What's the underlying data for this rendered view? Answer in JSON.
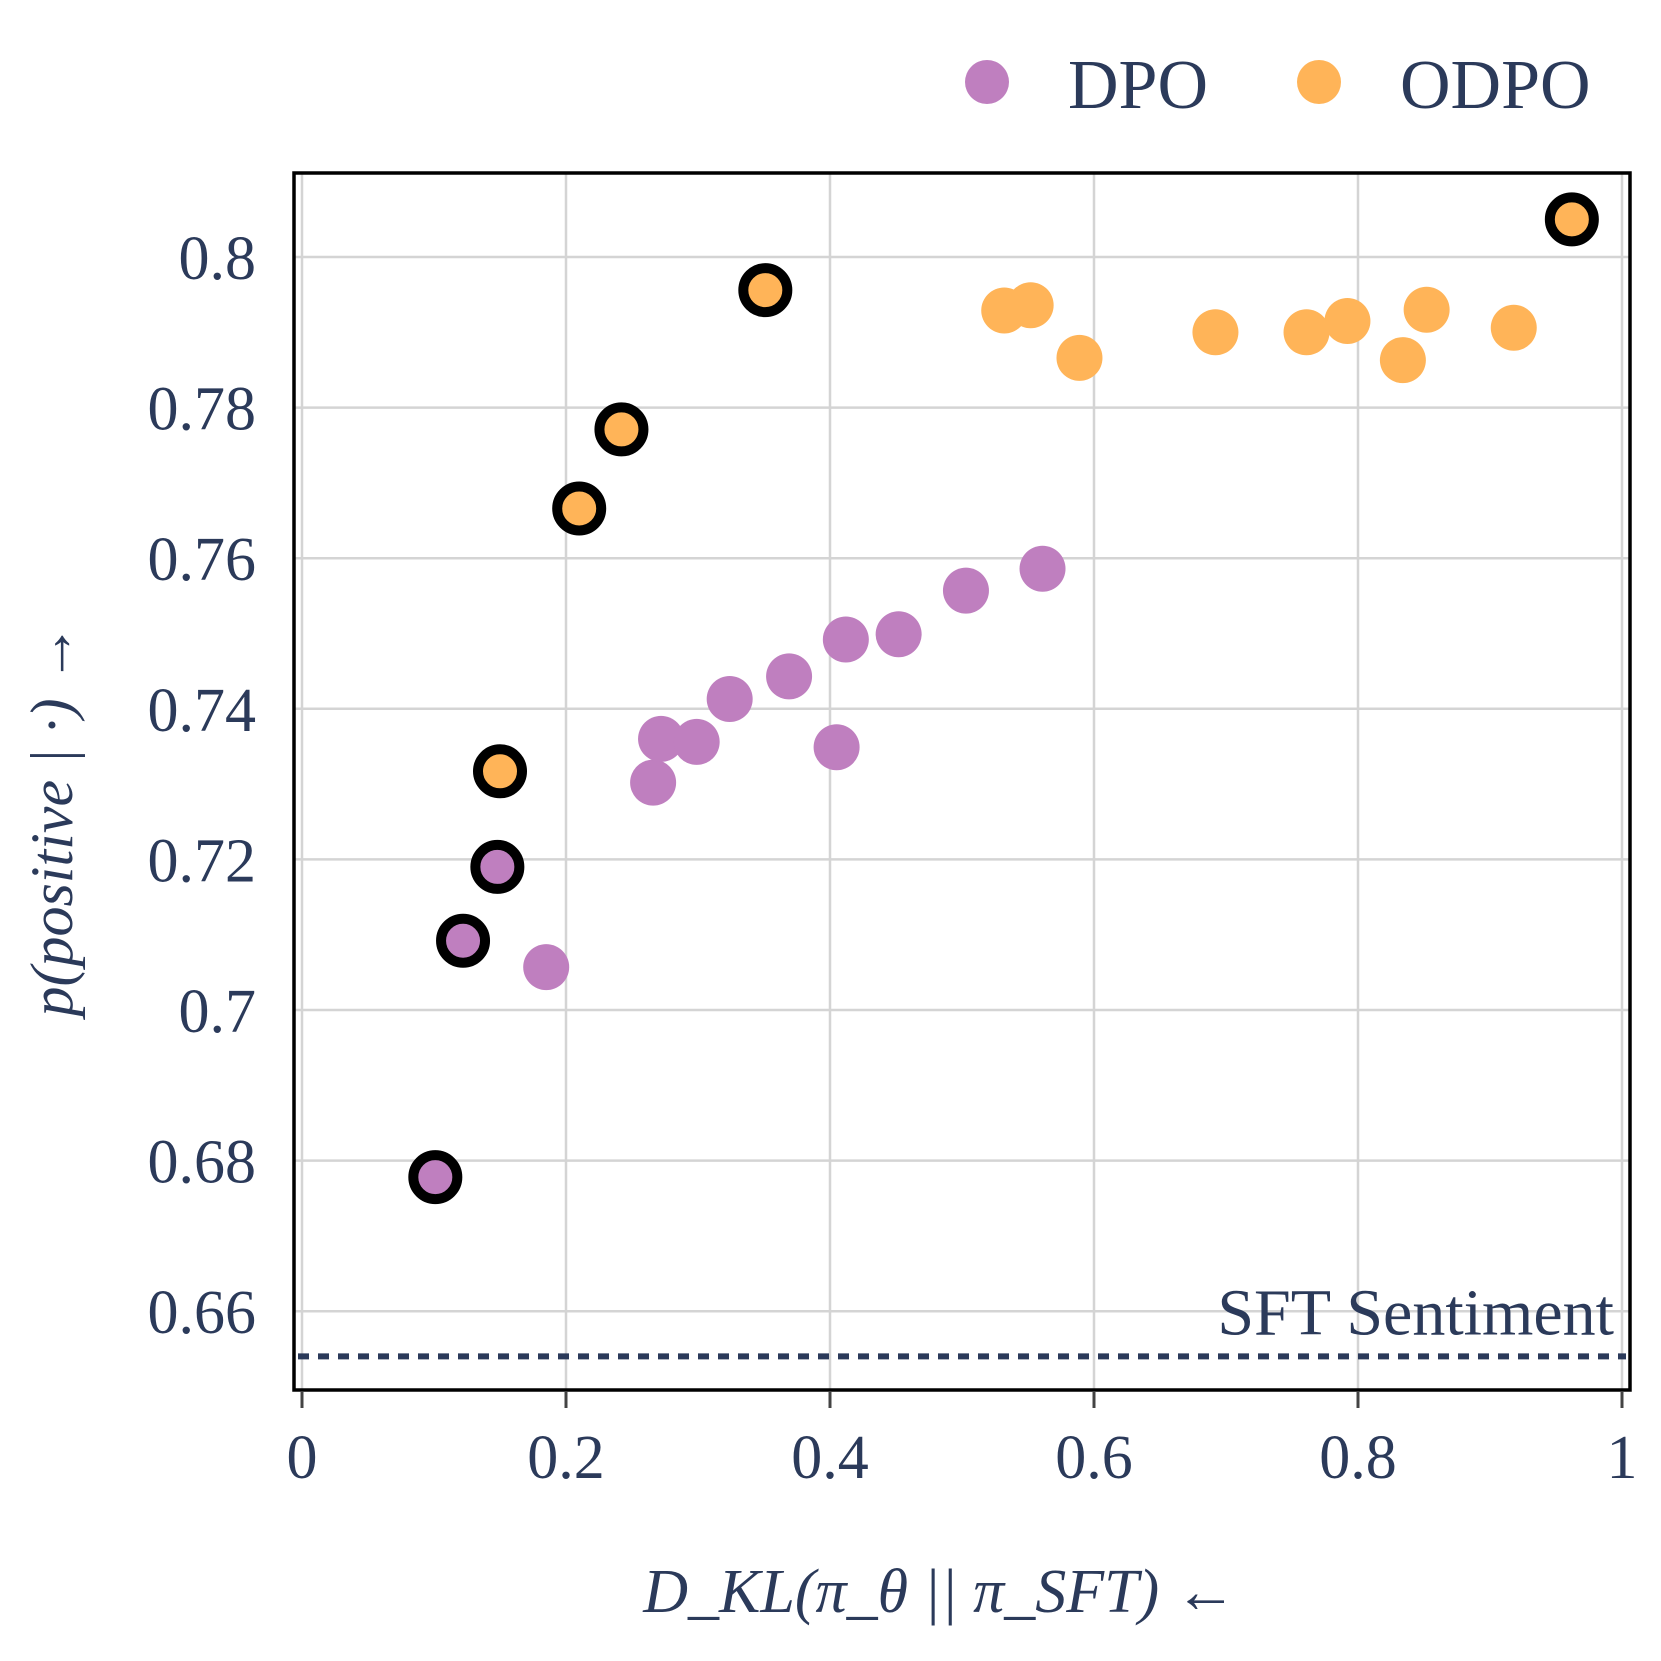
{
  "chart_data": {
    "type": "scatter",
    "xlabel": "D_KL(π_θ || π_SFT) ←",
    "ylabel": "p(positive | ·) →",
    "xlim": [
      0,
      1
    ],
    "ylim": [
      0.651,
      0.811
    ],
    "xticks": [
      0,
      0.2,
      0.4,
      0.6,
      0.8,
      1
    ],
    "xtick_labels": [
      "0",
      "0.2",
      "0.4",
      "0.6",
      "0.8",
      "1"
    ],
    "yticks": [
      0.66,
      0.68,
      0.7,
      0.72,
      0.74,
      0.76,
      0.78,
      0.8
    ],
    "ytick_labels": [
      "0.66",
      "0.68",
      "0.7",
      "0.72",
      "0.74",
      "0.76",
      "0.78",
      "0.8"
    ],
    "grid": true,
    "legend_position": "top-right, above plot",
    "reference_line": {
      "y": 0.654,
      "label": "SFT Sentiment",
      "style": "dotted",
      "color": "#2b3a5a"
    },
    "series": [
      {
        "name": "DPO",
        "color": "#bf7fbf",
        "points": [
          {
            "x": 0.101,
            "y": 0.6778,
            "highlight": true
          },
          {
            "x": 0.122,
            "y": 0.7092,
            "highlight": true
          },
          {
            "x": 0.148,
            "y": 0.719,
            "highlight": true
          },
          {
            "x": 0.185,
            "y": 0.7057,
            "highlight": false
          },
          {
            "x": 0.266,
            "y": 0.7302,
            "highlight": false
          },
          {
            "x": 0.272,
            "y": 0.736,
            "highlight": false
          },
          {
            "x": 0.299,
            "y": 0.7356,
            "highlight": false
          },
          {
            "x": 0.324,
            "y": 0.7413,
            "highlight": false
          },
          {
            "x": 0.369,
            "y": 0.7443,
            "highlight": false
          },
          {
            "x": 0.405,
            "y": 0.7349,
            "highlight": false
          },
          {
            "x": 0.412,
            "y": 0.7492,
            "highlight": false
          },
          {
            "x": 0.452,
            "y": 0.7499,
            "highlight": false
          },
          {
            "x": 0.503,
            "y": 0.7557,
            "highlight": false
          },
          {
            "x": 0.561,
            "y": 0.7586,
            "highlight": false
          }
        ]
      },
      {
        "name": "ODPO",
        "color": "#ffb458",
        "points": [
          {
            "x": 0.15,
            "y": 0.7317,
            "highlight": true
          },
          {
            "x": 0.21,
            "y": 0.7666,
            "highlight": true
          },
          {
            "x": 0.242,
            "y": 0.7771,
            "highlight": true
          },
          {
            "x": 0.351,
            "y": 0.7956,
            "highlight": true
          },
          {
            "x": 0.532,
            "y": 0.7929,
            "highlight": false
          },
          {
            "x": 0.552,
            "y": 0.7936,
            "highlight": false
          },
          {
            "x": 0.589,
            "y": 0.7866,
            "highlight": false
          },
          {
            "x": 0.692,
            "y": 0.79,
            "highlight": false
          },
          {
            "x": 0.761,
            "y": 0.79,
            "highlight": false
          },
          {
            "x": 0.792,
            "y": 0.7915,
            "highlight": false
          },
          {
            "x": 0.834,
            "y": 0.7863,
            "highlight": false
          },
          {
            "x": 0.852,
            "y": 0.793,
            "highlight": false
          },
          {
            "x": 0.918,
            "y": 0.7906,
            "highlight": false
          },
          {
            "x": 0.962,
            "y": 0.805,
            "highlight": true
          }
        ]
      }
    ]
  }
}
